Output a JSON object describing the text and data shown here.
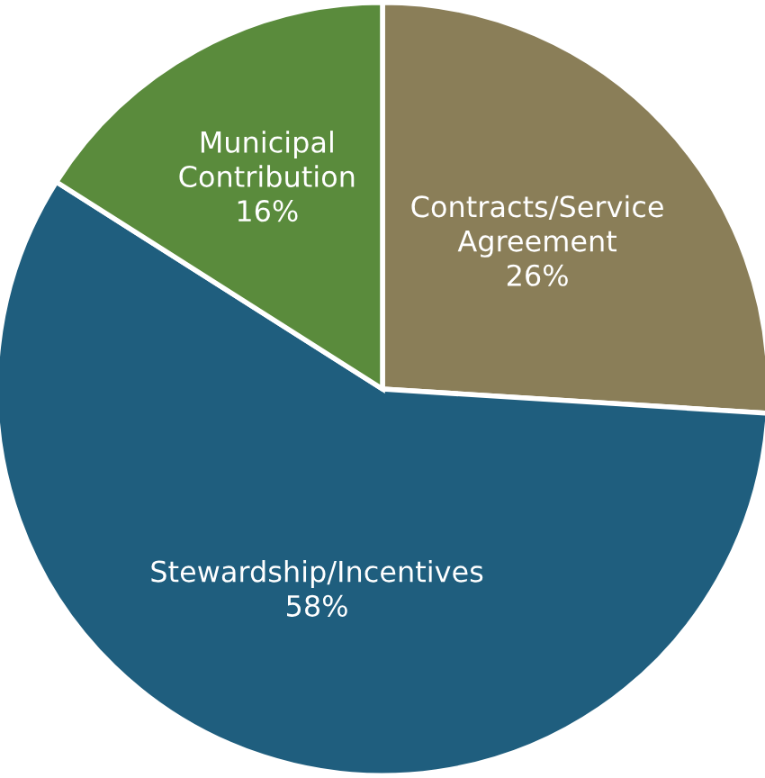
{
  "chart_data": {
    "type": "pie",
    "categories": [
      "Contracts/Service\nAgreement",
      "Stewardship/Incentives",
      "Municipal\nContribution"
    ],
    "values": [
      26,
      58,
      16
    ],
    "value_labels": [
      "26%",
      "58%",
      "16%"
    ],
    "colors": [
      "#8a7e58",
      "#1f5e7e",
      "#5a8b3c"
    ]
  }
}
